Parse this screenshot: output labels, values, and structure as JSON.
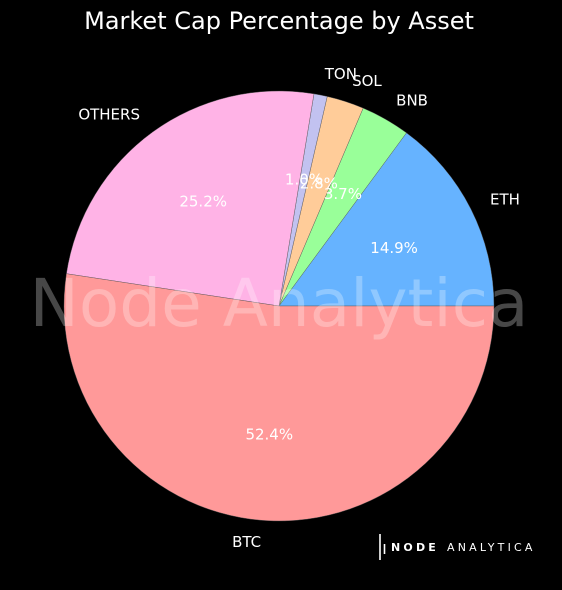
{
  "chart_data": {
    "type": "pie",
    "title": "Market Cap Percentage by Asset",
    "categories": [
      "ETH",
      "BNB",
      "SOL",
      "TON",
      "OTHERS",
      "BTC"
    ],
    "values": [
      14.9,
      3.7,
      2.8,
      1.0,
      25.2,
      52.4
    ],
    "value_labels": [
      "14.9%",
      "3.7%",
      "2.8%",
      "1.0%",
      "25.2%",
      "52.4%"
    ],
    "colors": [
      "#66b3ff",
      "#99ff99",
      "#ffcc99",
      "#c2c2f0",
      "#ffb3e6",
      "#ff9999"
    ],
    "legend": "none"
  },
  "watermark": {
    "text": "Node Analytica"
  },
  "brand": {
    "bold": "NODE",
    "rest": "ANALYTICA"
  }
}
